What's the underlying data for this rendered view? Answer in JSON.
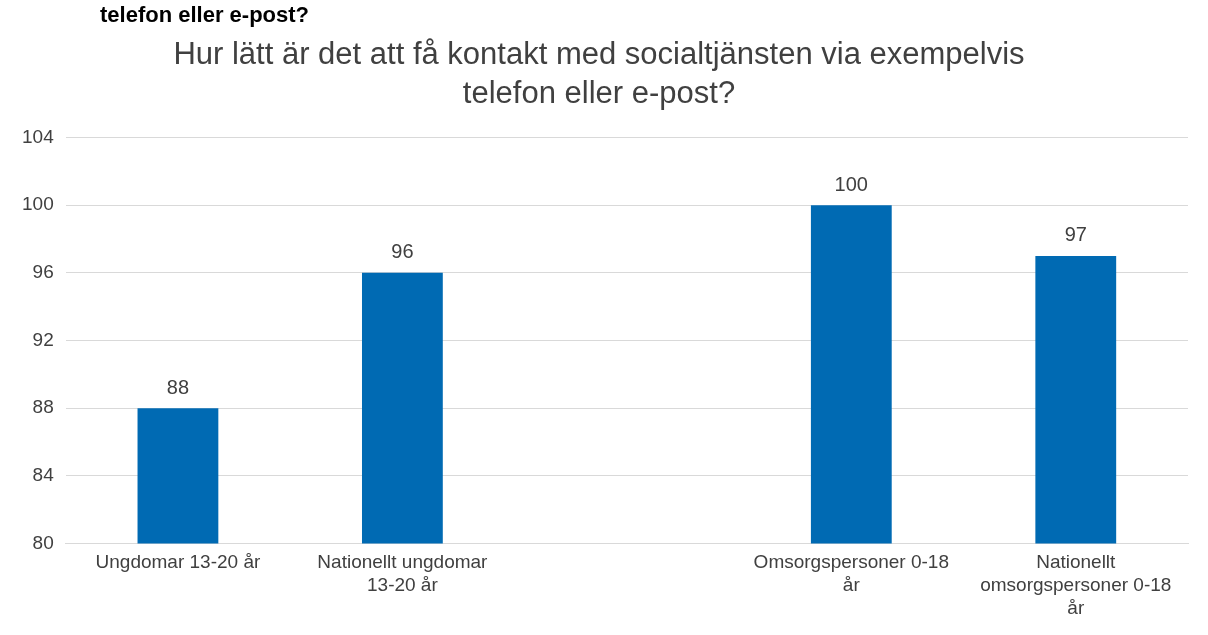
{
  "chart_data": {
    "type": "bar",
    "title": "Hur lätt är det att få kontakt med socialtjänsten via exempelvis telefon eller e-post?",
    "annotations": [
      "telefon eller e-post?"
    ],
    "categories": [
      "Ungdomar 13-20 år",
      "Nationellt ungdomar 13-20 år",
      null,
      "Omsorgspersoner 0-18 år",
      "Nationellt omsorgspersoner 0-18 år"
    ],
    "values": [
      88,
      96,
      null,
      100,
      97
    ],
    "color": "#006ab3",
    "ylim": [
      80,
      104
    ],
    "yticks": [
      80,
      84,
      88,
      92,
      96,
      100,
      104
    ],
    "grid": "y",
    "data_labels": true,
    "legend": false
  }
}
